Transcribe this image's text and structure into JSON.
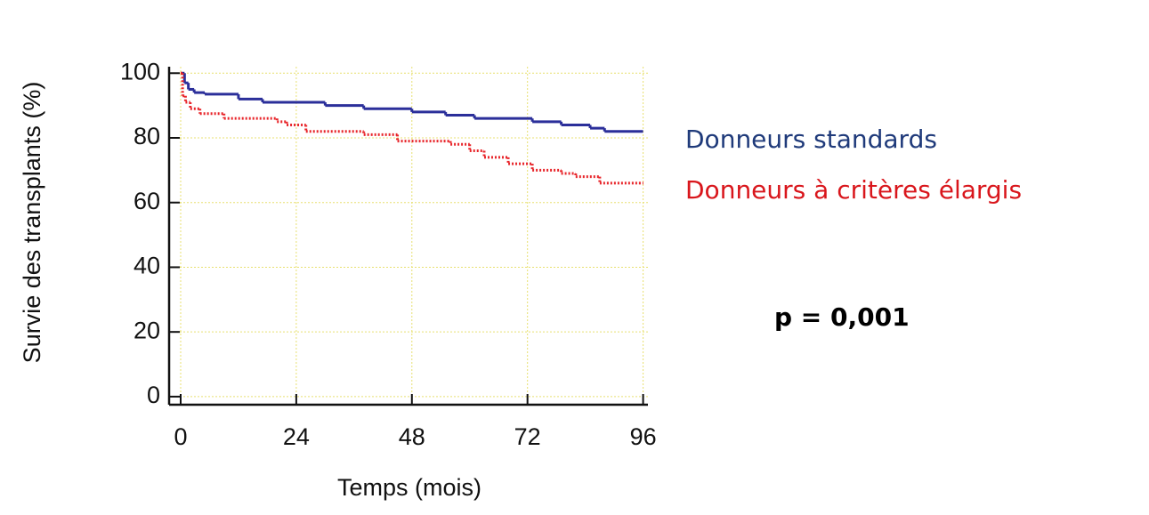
{
  "chart_data": {
    "type": "line",
    "step": "post",
    "ylabel": "Survie des transplants (%)",
    "xlabel": "Temps (mois)",
    "xlim": [
      -2.4,
      97
    ],
    "ylim": [
      -2.5,
      102
    ],
    "xticks": [
      0,
      24,
      48,
      72,
      96
    ],
    "yticks": [
      0,
      20,
      40,
      60,
      80,
      100
    ],
    "grid": true,
    "series": [
      {
        "name": "Donneurs standards",
        "color": "#2b2f9a",
        "legend_color": "#1f3a7a",
        "dash": "solid",
        "x": [
          0,
          0.8,
          1.6,
          2.8,
          5,
          12,
          17,
          30,
          38,
          48,
          55,
          61,
          73,
          79,
          85,
          88,
          96
        ],
        "values": [
          100,
          97,
          95,
          94,
          93.5,
          92,
          91,
          90,
          89,
          88,
          87,
          86,
          85,
          84,
          83,
          82,
          82
        ]
      },
      {
        "name": "Donneurs à critères élargis",
        "color": "#e8262b",
        "legend_color": "#d9161c",
        "dash": "dotted",
        "x": [
          0,
          0.4,
          1,
          2,
          4,
          9,
          20,
          22,
          26,
          38,
          45,
          56,
          60,
          63,
          68,
          73,
          79,
          82,
          87,
          96
        ],
        "values": [
          100,
          93,
          91,
          89,
          87.5,
          86,
          85,
          84,
          82,
          81,
          79,
          78,
          76,
          74,
          72,
          70,
          69,
          68,
          66,
          66
        ]
      }
    ],
    "annotation": "p = 0,001"
  }
}
